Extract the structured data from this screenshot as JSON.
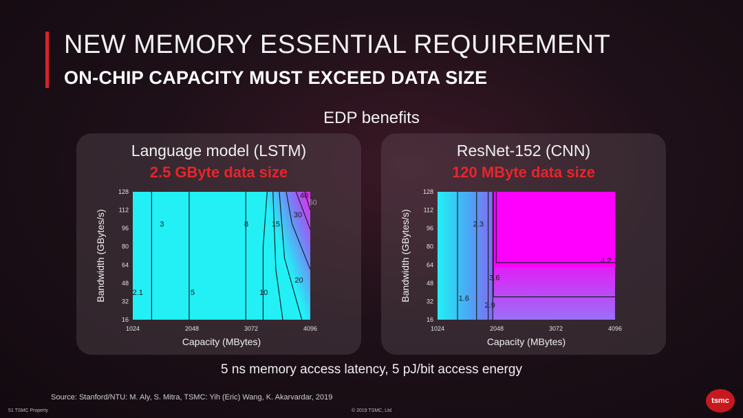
{
  "slide": {
    "title": "NEW MEMORY ESSENTIAL REQUIREMENT",
    "subtitle": "ON-CHIP CAPACITY MUST EXCEED DATA SIZE",
    "section_label": "EDP benefits",
    "note": "5 ns memory access latency, 5 pJ/bit access energy",
    "source": "Source: Stanford/NTU: M. Aly, S. Mitra, TSMC: Yih (Eric) Wang, K. Akarvardar, 2019",
    "footer_left": "51    TSMC Property",
    "footer_center": "© 2019 TSMC, Ltd",
    "logo_text": "tsmc",
    "accent_color": "#d8232a"
  },
  "chart_data": [
    {
      "type": "heatmap",
      "title": "Language model (LSTM)",
      "subtitle": "2.5 GByte data size",
      "xlabel": "Capacity (MBytes)",
      "ylabel": "Bandwidth (GBytes/s)",
      "xlim": [
        1024,
        4096
      ],
      "ylim": [
        16,
        128
      ],
      "xticks": [
        "1024",
        "2048",
        "3072",
        "4096"
      ],
      "yticks": [
        "16",
        "32",
        "48",
        "64",
        "80",
        "96",
        "112",
        "128"
      ],
      "contour_labels": [
        {
          "text": "2.1",
          "x": 1110,
          "y": 40
        },
        {
          "text": "3",
          "x": 1530,
          "y": 100
        },
        {
          "text": "5",
          "x": 2060,
          "y": 40
        },
        {
          "text": "8",
          "x": 2990,
          "y": 100
        },
        {
          "text": "10",
          "x": 3290,
          "y": 40
        },
        {
          "text": "15",
          "x": 3500,
          "y": 100
        },
        {
          "text": "20",
          "x": 3900,
          "y": 51
        },
        {
          "text": "30",
          "x": 3880,
          "y": 108
        },
        {
          "text": "40",
          "x": 3990,
          "y": 125
        },
        {
          "text": "50",
          "x": 4140,
          "y": 119
        }
      ],
      "colors": {
        "low": "#22f0f5",
        "mid": "#7a7cf5",
        "high": "#ee22ee",
        "line": "#15202a"
      }
    },
    {
      "type": "heatmap",
      "title": "ResNet-152 (CNN)",
      "subtitle": "120 MByte data size",
      "xlabel": "Capacity (MBytes)",
      "ylabel": "Bandwidth (GBytes/s)",
      "xlim": [
        1024,
        4096
      ],
      "ylim": [
        16,
        128
      ],
      "xticks": [
        "1024",
        "2048",
        "3072",
        "4096"
      ],
      "yticks": [
        "16",
        "32",
        "48",
        "64",
        "80",
        "96",
        "112",
        "128"
      ],
      "contour_labels": [
        {
          "text": "1.6",
          "x": 1480,
          "y": 35
        },
        {
          "text": "2.3",
          "x": 1730,
          "y": 100
        },
        {
          "text": "2.9",
          "x": 1930,
          "y": 29
        },
        {
          "text": "3.6",
          "x": 2010,
          "y": 53
        },
        {
          "text": "4.2",
          "x": 3940,
          "y": 68
        }
      ],
      "colors": {
        "low": "#22f0f5",
        "mid": "#8866f0",
        "high": "#ff00ff",
        "line": "#15202a"
      }
    }
  ]
}
